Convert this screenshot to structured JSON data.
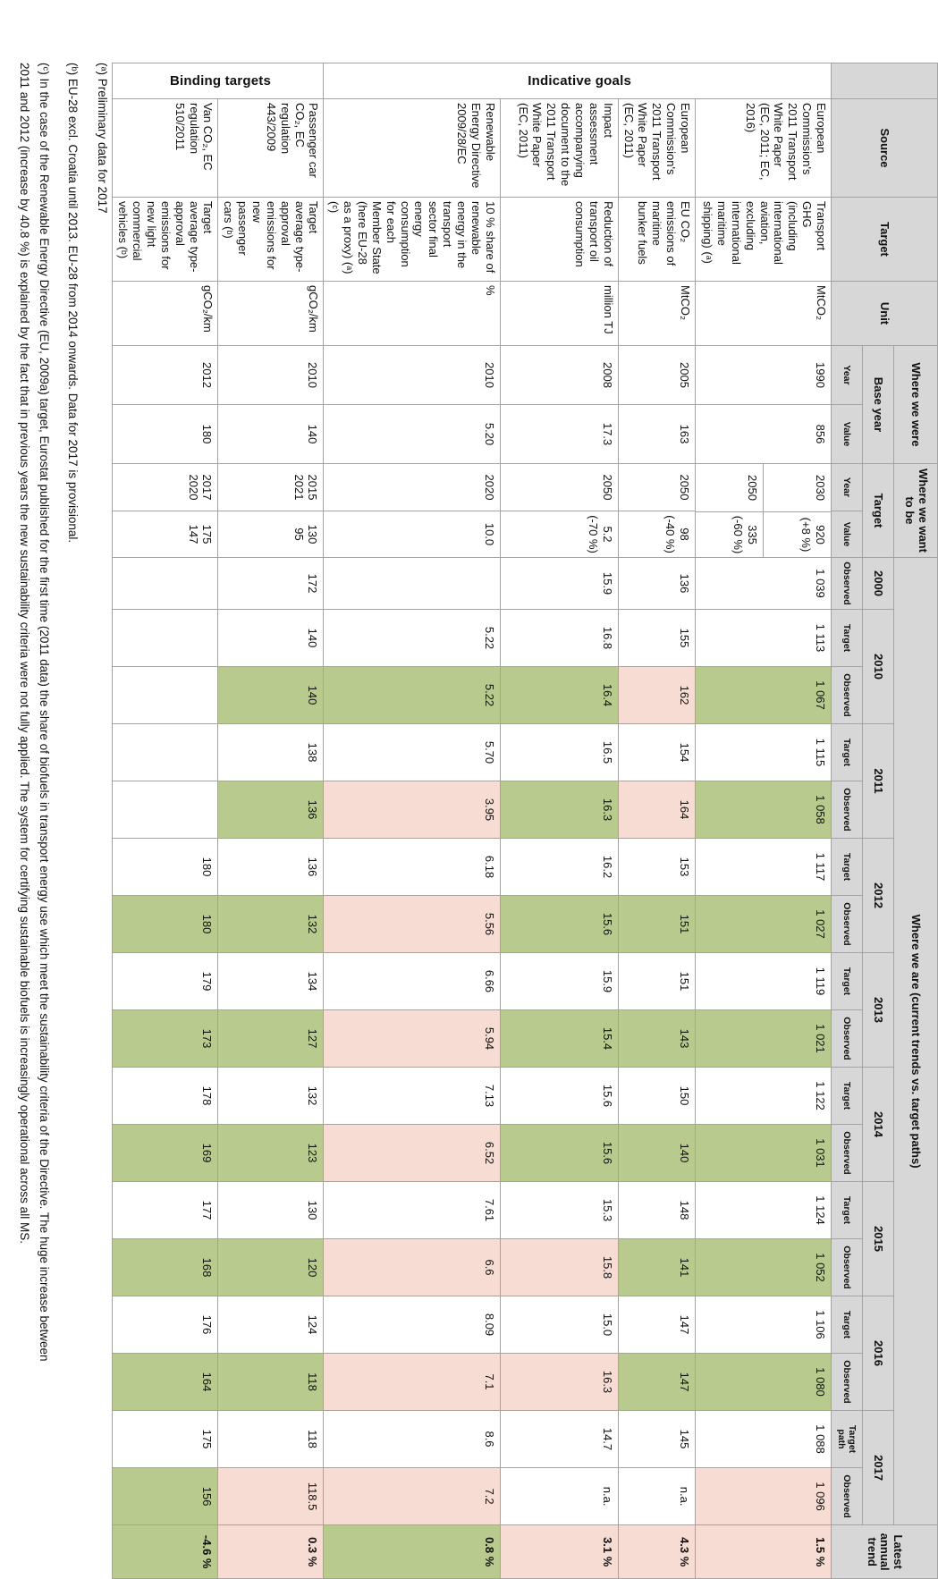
{
  "colors": {
    "on_track": "#b8ca8e",
    "off_track": "#f6dcd2",
    "header_bg": "#d7d7d7",
    "border": "#a3a3a3",
    "text": "#111111"
  },
  "header": {
    "source": "Source",
    "target": "Target",
    "unit": "Unit",
    "where_we_were": "Where we were",
    "base_year": "Base year",
    "where_we_want_to_be": "Where we want to be",
    "target_group": "Target",
    "where_we_are": "Where we are (current trends vs. target paths)",
    "latest_annual_trend": "Latest annual trend",
    "sub": {
      "year": "Year",
      "value": "Value",
      "observed": "Observed",
      "target": "Target",
      "target_path": "Target\npath"
    },
    "years": [
      "2000",
      "2010",
      "2011",
      "2012",
      "2013",
      "2014",
      "2015",
      "2016",
      "2017"
    ]
  },
  "groups": [
    {
      "label": "Indicative goals",
      "span": 4
    },
    {
      "label": "Binding targets",
      "span": 2
    }
  ],
  "rows": [
    {
      "key": "transport-ghg",
      "source": "European Commission's 2011 Transport White Paper (EC, 2011; EC, 2016)",
      "objective": "Transport GHG (including international aviation, excluding international maritime shipping) (ᵃ)",
      "unit": "MtCO₂",
      "base": {
        "year": "1990",
        "value": "856"
      },
      "targets": [
        {
          "year": "2030",
          "value": "920\n(+8 %)"
        },
        {
          "year": "2050",
          "value": "335\n(-60 %)"
        }
      ],
      "y2000": {
        "v": "1 039",
        "s": null
      },
      "years": [
        {
          "t": "1 113",
          "o": "1 067",
          "s": "g"
        },
        {
          "t": "1 115",
          "o": "1 058",
          "s": "g"
        },
        {
          "t": "1 117",
          "o": "1 027",
          "s": "g"
        },
        {
          "t": "1 119",
          "o": "1 021",
          "s": "g"
        },
        {
          "t": "1 122",
          "o": "1 031",
          "s": "g"
        },
        {
          "t": "1 124",
          "o": "1 052",
          "s": "g"
        },
        {
          "t": "1 106",
          "o": "1 080",
          "s": "g"
        },
        {
          "t": "1 088",
          "o": "1 096",
          "s": "b"
        }
      ],
      "trend": {
        "v": "1.5 %",
        "s": "b"
      }
    },
    {
      "key": "maritime-co2",
      "source": "European Commission's 2011 Transport White Paper (EC, 2011)",
      "objective": "EU CO₂ emissions of maritime bunker fuels",
      "unit": "MtCO₂",
      "base": {
        "year": "2005",
        "value": "163"
      },
      "targets": [
        {
          "year": "2050",
          "value": "98\n(-40 %)"
        }
      ],
      "y2000": {
        "v": "136",
        "s": null
      },
      "years": [
        {
          "t": "155",
          "o": "162",
          "s": "b"
        },
        {
          "t": "154",
          "o": "164",
          "s": "b"
        },
        {
          "t": "153",
          "o": "151",
          "s": "g"
        },
        {
          "t": "151",
          "o": "143",
          "s": "g"
        },
        {
          "t": "150",
          "o": "140",
          "s": "g"
        },
        {
          "t": "148",
          "o": "141",
          "s": "g"
        },
        {
          "t": "147",
          "o": "147",
          "s": "g"
        },
        {
          "t": "145",
          "o": "n.a.",
          "s": null
        }
      ],
      "trend": {
        "v": "4.3 %",
        "s": "b"
      }
    },
    {
      "key": "oil-consumption",
      "source": "Impact assessment accompanying document to the 2011 Transport White Paper (EC, 2011)",
      "objective": "Reduction of transport oil consumption",
      "unit": "million TJ",
      "base": {
        "year": "2008",
        "value": "17.3"
      },
      "targets": [
        {
          "year": "2050",
          "value": "5.2\n(-70 %)"
        }
      ],
      "y2000": {
        "v": "15.9",
        "s": null
      },
      "years": [
        {
          "t": "16.8",
          "o": "16.4",
          "s": "g"
        },
        {
          "t": "16.5",
          "o": "16.3",
          "s": "g"
        },
        {
          "t": "16.2",
          "o": "15.6",
          "s": "g"
        },
        {
          "t": "15.9",
          "o": "15.4",
          "s": "g"
        },
        {
          "t": "15.6",
          "o": "15.6",
          "s": "g"
        },
        {
          "t": "15.3",
          "o": "15.8",
          "s": "b"
        },
        {
          "t": "15.0",
          "o": "16.3",
          "s": "b"
        },
        {
          "t": "14.7",
          "o": "n.a.",
          "s": null
        }
      ],
      "trend": {
        "v": "3.1 %",
        "s": "b"
      }
    },
    {
      "key": "renewable-energy-share",
      "source": "Renewable Energy Directive 2009/28/EC",
      "objective": "10 % share of renewable energy in the transport sector final energy consumption for each Member State (here EU-28 as a proxy) (ᵃ) (ᶜ)",
      "unit": "%",
      "base": {
        "year": "2010",
        "value": "5.20"
      },
      "targets": [
        {
          "year": "2020",
          "value": "10.0"
        }
      ],
      "y2000": {
        "v": "",
        "s": null
      },
      "years": [
        {
          "t": "5.22",
          "o": "5.22",
          "s": "g"
        },
        {
          "t": "5.70",
          "o": "3.95",
          "s": "b"
        },
        {
          "t": "6.18",
          "o": "5.56",
          "s": "b"
        },
        {
          "t": "6.66",
          "o": "5.94",
          "s": "b"
        },
        {
          "t": "7.13",
          "o": "6.52",
          "s": "b"
        },
        {
          "t": "7.61",
          "o": "6.6",
          "s": "b"
        },
        {
          "t": "8.09",
          "o": "7.1",
          "s": "b"
        },
        {
          "t": "8.6",
          "o": "7.2",
          "s": "b"
        }
      ],
      "trend": {
        "v": "0.8 %",
        "s": "g"
      }
    },
    {
      "key": "car-co2",
      "source": "Passenger car CO₂, EC regulation 443/2009",
      "objective": "Target average type-approval emissions for new passenger cars (ᵇ)",
      "unit": "gCO₂/km",
      "base": {
        "year": "2010",
        "value": "140"
      },
      "targets": [
        {
          "year": "2015\n2021",
          "value": "130\n95"
        }
      ],
      "y2000": {
        "v": "172",
        "s": null
      },
      "years": [
        {
          "t": "140",
          "o": "140",
          "s": "g"
        },
        {
          "t": "138",
          "o": "136",
          "s": "g"
        },
        {
          "t": "136",
          "o": "132",
          "s": "g"
        },
        {
          "t": "134",
          "o": "127",
          "s": "g"
        },
        {
          "t": "132",
          "o": "123",
          "s": "g"
        },
        {
          "t": "130",
          "o": "120",
          "s": "g"
        },
        {
          "t": "124",
          "o": "118",
          "s": "g"
        },
        {
          "t": "118",
          "o": "118.5",
          "s": "b"
        }
      ],
      "trend": {
        "v": "0.3 %",
        "s": "b"
      }
    },
    {
      "key": "van-co2",
      "source": "Van CO₂, EC regulation 510/2011",
      "objective": "Target average type-approval emissions for new light commercial vehicles (ᵇ)",
      "unit": "gCO₂/km",
      "base": {
        "year": "2012",
        "value": "180"
      },
      "targets": [
        {
          "year": "2017\n2020",
          "value": "175\n147"
        }
      ],
      "y2000": {
        "v": "",
        "s": null
      },
      "years": [
        {
          "t": "",
          "o": "",
          "s": null
        },
        {
          "t": "",
          "o": "",
          "s": null
        },
        {
          "t": "180",
          "o": "180",
          "s": "g"
        },
        {
          "t": "179",
          "o": "173",
          "s": "g"
        },
        {
          "t": "178",
          "o": "169",
          "s": "g"
        },
        {
          "t": "177",
          "o": "168",
          "s": "g"
        },
        {
          "t": "176",
          "o": "164",
          "s": "g"
        },
        {
          "t": "175",
          "o": "156",
          "s": "g"
        }
      ],
      "trend": {
        "v": "-4.6 %",
        "s": "g"
      }
    }
  ],
  "footnotes": {
    "a": "(ᵃ) Preliminary data for 2017",
    "b": "(ᵇ) EU-28 excl. Croatia until 2013. EU-28 from 2014 onwards. Data for 2017 is provisional.",
    "c": "(ᶜ) In the case of the Renewable Energy Directive (EU, 2009a) target, Eurostat published for the first time (2011 data) the share of biofuels in transport energy use which meet the sustainability criteria of the Directive. The huge increase between 2011 and 2012 (increase by 40.8 %) is explained by the fact that in previous years the new sustainability criteria were not fully applied. The system for certifying sustainable biofuels is increasingly operational across all MS."
  }
}
